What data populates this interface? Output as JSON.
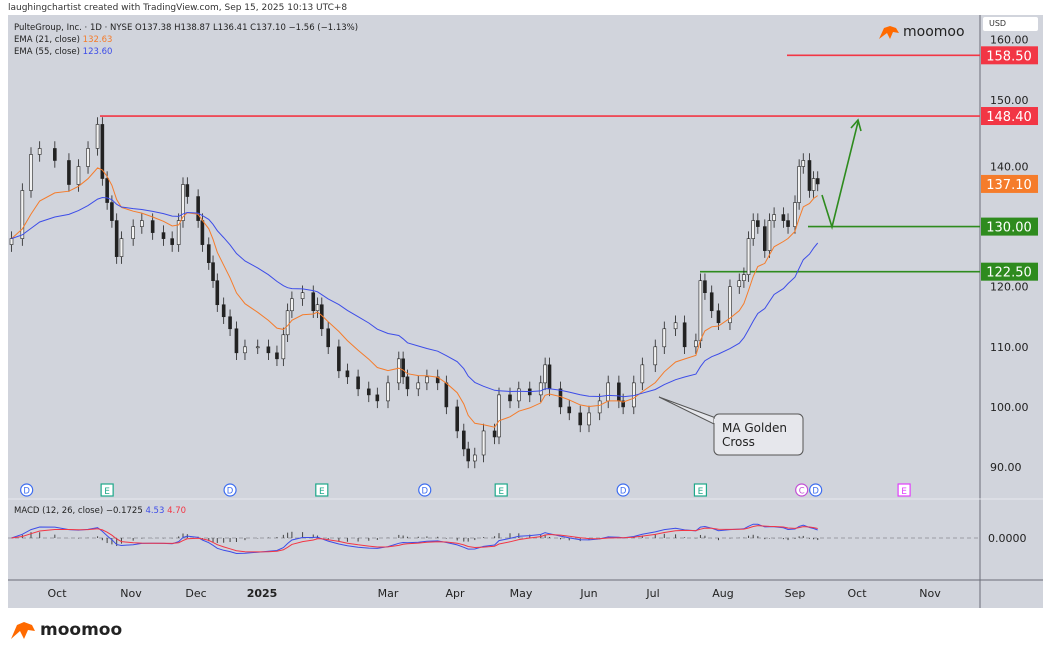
{
  "credit": "laughingchartist created with TradingView.com, Sep 15, 2025 10:13 UTC+8",
  "legend": {
    "symbol": "PulteGroup, Inc. · 1D · NYSE",
    "ohlc": "O137.38  H138.87  L136.41  C137.10  −1.56 (−1.13%)",
    "ema21_label": "EMA (21, close)",
    "ema21_value": "132.63",
    "ema55_label": "EMA (55, close)",
    "ema55_value": "123.60",
    "macd_label": "MACD (12, 26, close)",
    "macd_hist": "−0.1725",
    "macd_value": "4.53",
    "macd_signal": "4.70"
  },
  "brand": "moomoo",
  "currency": "USD",
  "annotation": {
    "callout": [
      "MA Golden",
      "Cross"
    ]
  },
  "colors": {
    "bg": "#d1d4dc",
    "ema21": "#f57c2b",
    "ema55": "#3d4de8",
    "resistance": "#f23645",
    "support": "#2e8b1e",
    "macd": "#3d4de8",
    "signal": "#f23645",
    "brand": "#ff6a00"
  },
  "chart_data": {
    "type": "candlestick",
    "ylim": [
      86,
      162
    ],
    "y_ticks": [
      "160.00",
      "150.00",
      "140.00",
      "120.00",
      "110.00",
      "100.00",
      "90.00"
    ],
    "x_ticks": [
      "Oct",
      "Nov",
      "Dec",
      "2025",
      "Mar",
      "Apr",
      "May",
      "Jun",
      "Jul",
      "Aug",
      "Sep",
      "Oct",
      "Nov"
    ],
    "macd_zero_label": "0.0000",
    "last_price": {
      "value": 137.1,
      "label": "137.10"
    },
    "levels": [
      {
        "value": 158.5,
        "label": "158.50",
        "kind": "resistance"
      },
      {
        "value": 148.4,
        "label": "148.40",
        "kind": "resistance"
      },
      {
        "value": 130.0,
        "label": "130.00",
        "kind": "support"
      },
      {
        "value": 122.5,
        "label": "122.50",
        "kind": "support"
      }
    ],
    "events": [
      {
        "date": "2024-09-17",
        "type": "D"
      },
      {
        "date": "2024-10-22",
        "type": "E"
      },
      {
        "date": "2024-12-17",
        "type": "D"
      },
      {
        "date": "2025-01-29",
        "type": "E"
      },
      {
        "date": "2025-03-18",
        "type": "D"
      },
      {
        "date": "2025-04-22",
        "type": "E"
      },
      {
        "date": "2025-06-17",
        "type": "D"
      },
      {
        "date": "2025-07-22",
        "type": "E"
      },
      {
        "date": "2025-09-09",
        "type": "C"
      },
      {
        "date": "2025-09-11",
        "type": "D"
      },
      {
        "date": "2025-10-21",
        "type": "E"
      }
    ],
    "series": {
      "dates": [
        "2024-09-10",
        "2024-09-15",
        "2024-09-19",
        "2024-09-23",
        "2024-09-30",
        "2024-10-06",
        "2024-10-10",
        "2024-10-14",
        "2024-10-18",
        "2024-10-20",
        "2024-10-22",
        "2024-10-24",
        "2024-10-26",
        "2024-10-28",
        "2024-11-02",
        "2024-11-06",
        "2024-11-11",
        "2024-11-16",
        "2024-11-20",
        "2024-11-23",
        "2024-11-25",
        "2024-11-27",
        "2024-12-02",
        "2024-12-04",
        "2024-12-07",
        "2024-12-09",
        "2024-12-11",
        "2024-12-14",
        "2024-12-17",
        "2024-12-20",
        "2024-12-24",
        "2024-12-30",
        "2025-01-04",
        "2025-01-08",
        "2025-01-11",
        "2025-01-13",
        "2025-01-15",
        "2025-01-20",
        "2025-01-25",
        "2025-01-27",
        "2025-01-29",
        "2025-02-01",
        "2025-02-06",
        "2025-02-10",
        "2025-02-15",
        "2025-02-20",
        "2025-02-24",
        "2025-03-01",
        "2025-03-06",
        "2025-03-08",
        "2025-03-10",
        "2025-03-15",
        "2025-03-19",
        "2025-03-24",
        "2025-03-28",
        "2025-04-02",
        "2025-04-05",
        "2025-04-07",
        "2025-04-10",
        "2025-04-14",
        "2025-04-19",
        "2025-04-21",
        "2025-04-26",
        "2025-04-30",
        "2025-05-05",
        "2025-05-10",
        "2025-05-12",
        "2025-05-14",
        "2025-05-19",
        "2025-05-23",
        "2025-05-28",
        "2025-06-01",
        "2025-06-06",
        "2025-06-10",
        "2025-06-15",
        "2025-06-17",
        "2025-06-22",
        "2025-06-26",
        "2025-07-02",
        "2025-07-06",
        "2025-07-11",
        "2025-07-15",
        "2025-07-20",
        "2025-07-22",
        "2025-07-24",
        "2025-07-27",
        "2025-07-30",
        "2025-08-04",
        "2025-08-08",
        "2025-08-10",
        "2025-08-12",
        "2025-08-14",
        "2025-08-16",
        "2025-08-19",
        "2025-08-21",
        "2025-08-23",
        "2025-08-27",
        "2025-08-29",
        "2025-09-01",
        "2025-09-03",
        "2025-09-05",
        "2025-09-08",
        "2025-09-10",
        "2025-09-12"
      ],
      "close": [
        128,
        136,
        142,
        143,
        141,
        137,
        140,
        143,
        147,
        138,
        134,
        131,
        125,
        128,
        130,
        131,
        129,
        128,
        127,
        131,
        137,
        135,
        131,
        127,
        124,
        121,
        117,
        115,
        113,
        109,
        110,
        110,
        109,
        108,
        112,
        116,
        118,
        119,
        116,
        117,
        113,
        110,
        106,
        105,
        103,
        102,
        101,
        104,
        108,
        105,
        103,
        104,
        105,
        104,
        100,
        96,
        93,
        91,
        92,
        96,
        95,
        102,
        101,
        103,
        102,
        104,
        107,
        103,
        100,
        99,
        97,
        99,
        101,
        104,
        101,
        100,
        104,
        107,
        110,
        113,
        114,
        110,
        111,
        121,
        119,
        116,
        114,
        120,
        121,
        122,
        128,
        131,
        130,
        126,
        131,
        132,
        131,
        130,
        134,
        140,
        141,
        136,
        138,
        137.1
      ]
    }
  }
}
